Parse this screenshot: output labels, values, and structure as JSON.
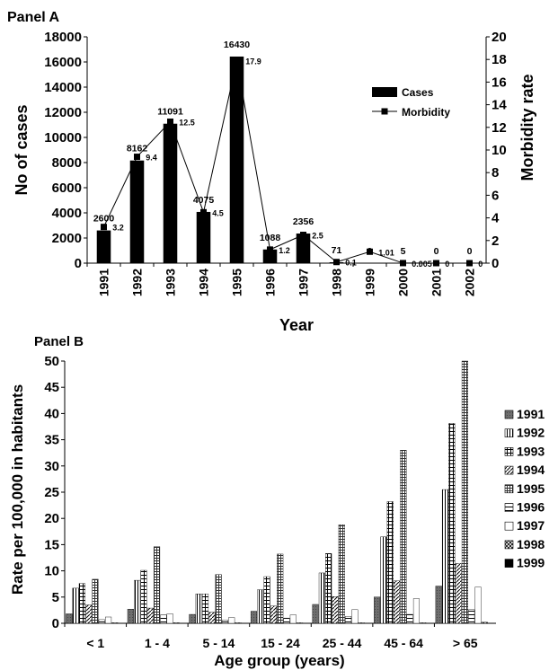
{
  "chart_data": [
    {
      "type": "bar",
      "panel_label": "Panel A",
      "xlabel": "Year",
      "ylabel": "No of cases",
      "y2label": "Morbidity rate",
      "ylim": [
        0,
        18000
      ],
      "y2lim": [
        0,
        20
      ],
      "yticks": [
        "0",
        "2000",
        "4000",
        "6000",
        "8000",
        "10000",
        "12000",
        "14000",
        "16000",
        "18000"
      ],
      "y2ticks": [
        "0",
        "2",
        "4",
        "6",
        "8",
        "10",
        "12",
        "14",
        "16",
        "18",
        "20"
      ],
      "categories": [
        "1991",
        "1992",
        "1993",
        "1994",
        "1995",
        "1996",
        "1997",
        "1998",
        "1999",
        "2000",
        "2001",
        "2002"
      ],
      "series": [
        {
          "name": "Cases",
          "kind": "bar",
          "color": "#000000",
          "values": [
            2600,
            8162,
            11091,
            4075,
            16430,
            1088,
            2356,
            71,
            9,
            5,
            0,
            0
          ],
          "labels": [
            "2600",
            "8162",
            "11091",
            "4075",
            "16430",
            "1088",
            "2356",
            "71",
            "9",
            "5",
            "0",
            "0"
          ]
        },
        {
          "name": "Morbidity",
          "kind": "line",
          "axis": "right",
          "color": "#000000",
          "values": [
            3.2,
            9.4,
            12.5,
            4.5,
            17.9,
            1.2,
            2.5,
            0.1,
            1.01,
            0.005,
            0,
            0
          ],
          "labels": [
            "3.2",
            "9.4",
            "12.5",
            "4.5",
            "17.9",
            "1.2",
            "2.5",
            "0.1",
            "1.01",
            "0.005",
            "0",
            "0"
          ]
        }
      ],
      "legend_position": "right"
    },
    {
      "type": "bar",
      "panel_label": "Panel B",
      "xlabel": "Age group (years)",
      "ylabel": "Rate per 100,000 in habitants",
      "ylim": [
        0,
        50
      ],
      "yticks": [
        "0",
        "5",
        "10",
        "15",
        "20",
        "25",
        "30",
        "35",
        "40",
        "45",
        "50"
      ],
      "categories": [
        "< 1",
        "1 - 4",
        "5 - 14",
        "15 - 24",
        "25 - 44",
        "45 - 64",
        "> 65"
      ],
      "series": [
        {
          "name": "1991",
          "pattern": "dark",
          "values": [
            1.8,
            2.7,
            1.7,
            2.3,
            3.6,
            5.0,
            7.1
          ]
        },
        {
          "name": "1992",
          "pattern": "vstripe",
          "values": [
            6.7,
            8.2,
            5.6,
            6.4,
            9.6,
            16.5,
            25.5
          ]
        },
        {
          "name": "1993",
          "pattern": "brick",
          "values": [
            7.6,
            10.1,
            5.6,
            8.9,
            13.3,
            23.2,
            38.1
          ]
        },
        {
          "name": "1994",
          "pattern": "diag",
          "values": [
            3.5,
            2.9,
            2.1,
            3.3,
            5.1,
            8.1,
            11.4
          ]
        },
        {
          "name": "1995",
          "pattern": "grid",
          "values": [
            8.4,
            14.6,
            9.3,
            13.2,
            18.8,
            33.0,
            50.0
          ]
        },
        {
          "name": "1996",
          "pattern": "hstripe",
          "values": [
            0.7,
            1.6,
            0.6,
            1.0,
            1.3,
            1.7,
            2.6
          ]
        },
        {
          "name": "1997",
          "pattern": "white",
          "values": [
            1.2,
            1.8,
            1.1,
            1.6,
            2.6,
            4.7,
            6.9
          ]
        },
        {
          "name": "1998",
          "pattern": "cross",
          "values": [
            0.1,
            0.1,
            0.1,
            0.1,
            0.1,
            0.1,
            0.2
          ]
        },
        {
          "name": "1999",
          "pattern": "black",
          "values": [
            0.02,
            0.02,
            0.02,
            0.02,
            0.03,
            0.03,
            0.05
          ]
        }
      ],
      "legend_position": "right"
    }
  ]
}
